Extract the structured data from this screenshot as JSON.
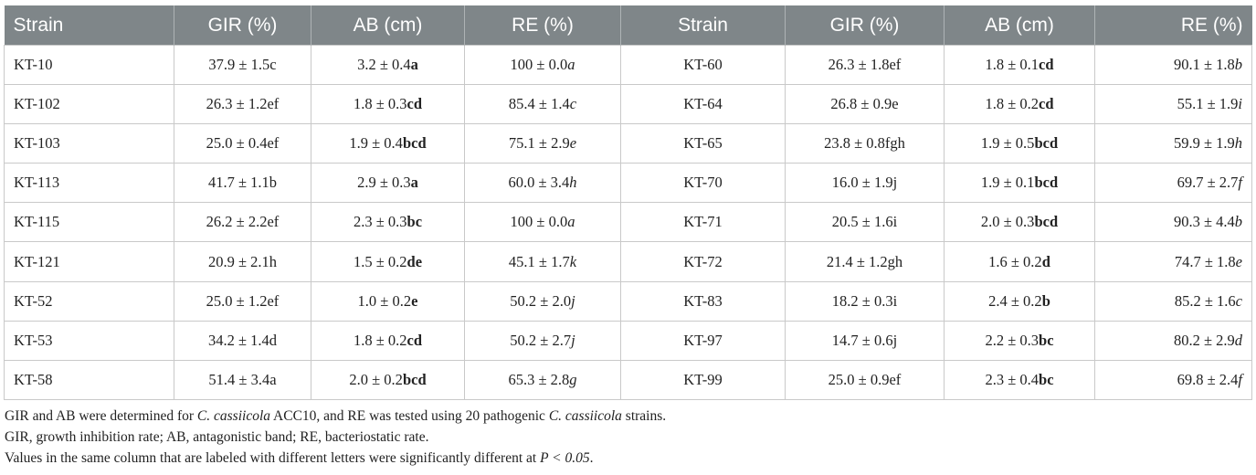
{
  "table": {
    "headers": [
      "Strain",
      "GIR (%)",
      "AB (cm)",
      "RE (%)",
      "Strain",
      "GIR (%)",
      "AB (cm)",
      "RE (%)"
    ],
    "rows": [
      [
        {
          "text": "KT-10"
        },
        {
          "value": "37.9 ± 1.5",
          "sig": "c"
        },
        {
          "value": "3.2 ± 0.4",
          "sig": "a"
        },
        {
          "value": "100 ± 0.0",
          "sig": "a"
        },
        {
          "text": "KT-60"
        },
        {
          "value": "26.3 ± 1.8",
          "sig": "ef"
        },
        {
          "value": "1.8 ± 0.1",
          "sig": "cd"
        },
        {
          "value": "90.1 ± 1.8",
          "sig": "b"
        }
      ],
      [
        {
          "text": "KT-102"
        },
        {
          "value": "26.3 ± 1.2",
          "sig": "ef"
        },
        {
          "value": "1.8 ± 0.3",
          "sig": "cd"
        },
        {
          "value": "85.4 ± 1.4",
          "sig": "c"
        },
        {
          "text": "KT-64"
        },
        {
          "value": "26.8 ± 0.9",
          "sig": "e"
        },
        {
          "value": "1.8 ± 0.2",
          "sig": "cd"
        },
        {
          "value": "55.1 ± 1.9",
          "sig": "i"
        }
      ],
      [
        {
          "text": "KT-103"
        },
        {
          "value": "25.0 ± 0.4",
          "sig": "ef"
        },
        {
          "value": "1.9 ± 0.4",
          "sig": "bcd"
        },
        {
          "value": "75.1 ± 2.9",
          "sig": "e"
        },
        {
          "text": "KT-65"
        },
        {
          "value": "23.8 ± 0.8",
          "sig": "fgh"
        },
        {
          "value": "1.9 ± 0.5",
          "sig": "bcd"
        },
        {
          "value": "59.9 ± 1.9",
          "sig": "h"
        }
      ],
      [
        {
          "text": "KT-113"
        },
        {
          "value": "41.7 ± 1.1",
          "sig": "b"
        },
        {
          "value": "2.9 ± 0.3",
          "sig": "a"
        },
        {
          "value": "60.0 ± 3.4",
          "sig": "h"
        },
        {
          "text": "KT-70"
        },
        {
          "value": "16.0 ± 1.9",
          "sig": "j"
        },
        {
          "value": "1.9 ± 0.1",
          "sig": "bcd"
        },
        {
          "value": "69.7 ± 2.7",
          "sig": "f"
        }
      ],
      [
        {
          "text": "KT-115"
        },
        {
          "value": "26.2 ± 2.2",
          "sig": "ef"
        },
        {
          "value": "2.3 ± 0.3",
          "sig": "bc"
        },
        {
          "value": "100 ± 0.0",
          "sig": "a"
        },
        {
          "text": "KT-71"
        },
        {
          "value": "20.5 ± 1.6",
          "sig": "i"
        },
        {
          "value": "2.0 ± 0.3",
          "sig": "bcd"
        },
        {
          "value": "90.3 ± 4.4",
          "sig": "b"
        }
      ],
      [
        {
          "text": "KT-121"
        },
        {
          "value": "20.9 ± 2.1",
          "sig": "h"
        },
        {
          "value": "1.5 ± 0.2",
          "sig": "de"
        },
        {
          "value": "45.1 ± 1.7",
          "sig": "k"
        },
        {
          "text": "KT-72"
        },
        {
          "value": "21.4 ± 1.2",
          "sig": "gh"
        },
        {
          "value": "1.6 ± 0.2",
          "sig": "d"
        },
        {
          "value": "74.7 ± 1.8",
          "sig": "e"
        }
      ],
      [
        {
          "text": "KT-52"
        },
        {
          "value": "25.0 ± 1.2",
          "sig": "ef"
        },
        {
          "value": "1.0 ± 0.2",
          "sig": "e"
        },
        {
          "value": "50.2 ± 2.0",
          "sig": "j"
        },
        {
          "text": "KT-83"
        },
        {
          "value": "18.2 ± 0.3",
          "sig": "i"
        },
        {
          "value": "2.4 ± 0.2",
          "sig": "b"
        },
        {
          "value": "85.2 ± 1.6",
          "sig": "c"
        }
      ],
      [
        {
          "text": "KT-53"
        },
        {
          "value": "34.2 ± 1.4",
          "sig": "d"
        },
        {
          "value": "1.8 ± 0.2",
          "sig": "cd"
        },
        {
          "value": "50.2 ± 2.7",
          "sig": "j"
        },
        {
          "text": "KT-97"
        },
        {
          "value": "14.7 ± 0.6",
          "sig": "j"
        },
        {
          "value": "2.2 ± 0.3",
          "sig": "bc"
        },
        {
          "value": "80.2 ± 2.9",
          "sig": "d"
        }
      ],
      [
        {
          "text": "KT-58"
        },
        {
          "value": "51.4 ± 3.4",
          "sig": "a"
        },
        {
          "value": "2.0 ± 0.2",
          "sig": "bcd"
        },
        {
          "value": "65.3 ± 2.8",
          "sig": "g"
        },
        {
          "text": "KT-99"
        },
        {
          "value": "25.0 ± 0.9",
          "sig": "ef"
        },
        {
          "value": "2.3 ± 0.4",
          "sig": "bc"
        },
        {
          "value": "69.8 ± 2.4",
          "sig": "f"
        }
      ]
    ]
  },
  "notes": {
    "line1": {
      "a": "GIR and AB were determined for ",
      "b": "C. cassiicola",
      "c": " ACC10, and RE was tested using 20 pathogenic ",
      "d": "C. cassiicola",
      "e": " strains."
    },
    "line2": "GIR, growth inhibition rate; AB, antagonistic band; RE, bacteriostatic rate.",
    "line3": {
      "a": "Values in the same column that are labeled with different letters were significantly different at ",
      "b": "P < 0.05",
      "c": "."
    }
  }
}
